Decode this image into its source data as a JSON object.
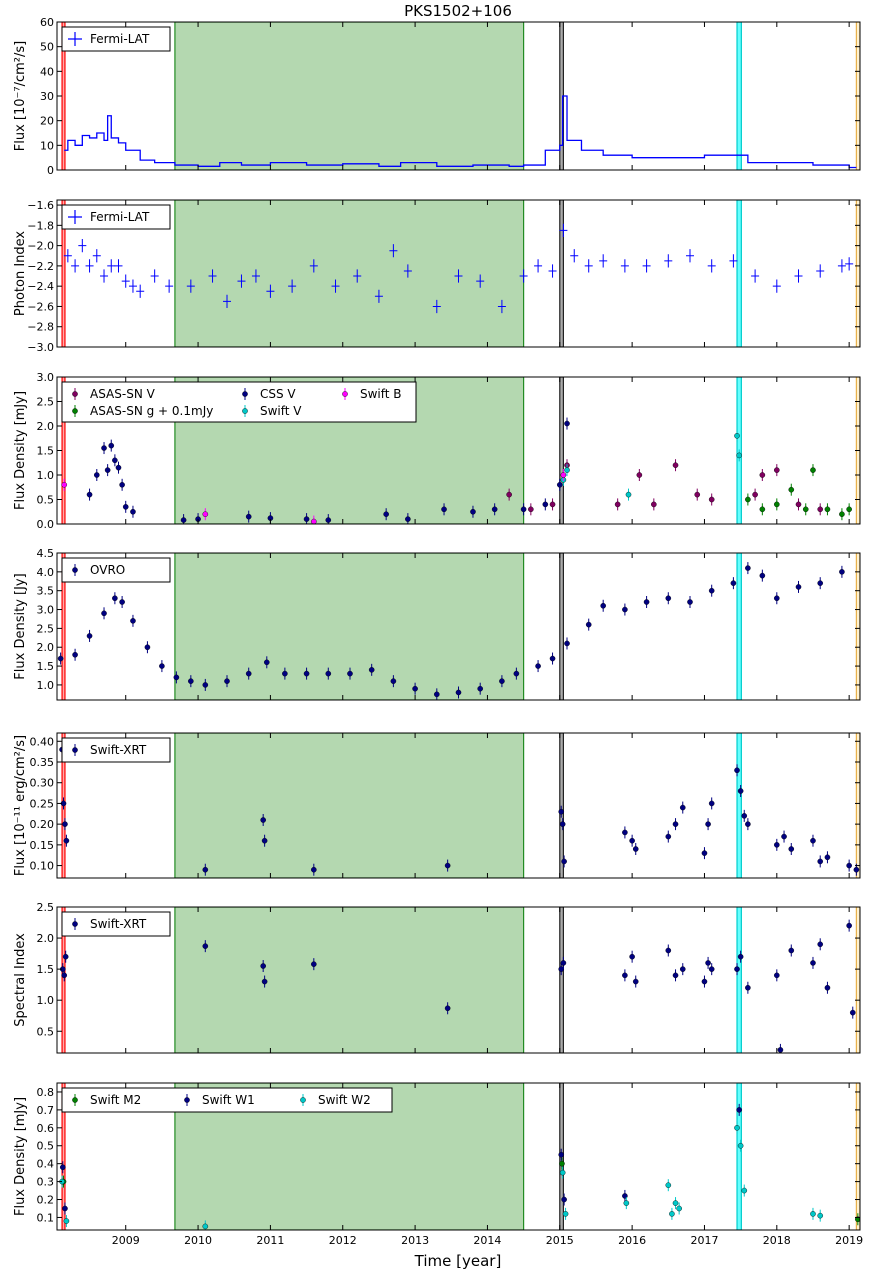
{
  "chart_data": {
    "type": "scatter",
    "title": "PKS1502+106",
    "xlabel": "Time [year]",
    "xlim": [
      2008.05,
      2019.15
    ],
    "xticks": [
      "2009",
      "2010",
      "2011",
      "2012",
      "2013",
      "2014",
      "2015",
      "2016",
      "2017",
      "2018",
      "2019"
    ],
    "shaded_regions": [
      {
        "from": 2008.12,
        "to": 2008.16,
        "color": "#ff0000",
        "fill": "#ffaaaa"
      },
      {
        "from": 2009.68,
        "to": 2014.5,
        "color": "#228b22",
        "fill": "#b4d8b0"
      },
      {
        "from": 2015.0,
        "to": 2015.05,
        "color": "#222222",
        "fill": "#aaaaaa"
      },
      {
        "from": 2017.45,
        "to": 2017.51,
        "color": "#00cccc",
        "fill": "#66ffff"
      },
      {
        "from": 2019.1,
        "to": 2019.15,
        "color": "#e8b04a",
        "fill": "#fff2d0"
      }
    ],
    "panels": [
      {
        "id": "fermi-flux",
        "ylabel": "Flux [10⁻⁷/cm²/s]",
        "ylim": [
          0,
          60
        ],
        "yticks": [
          "0",
          "10",
          "20",
          "30",
          "40",
          "50",
          "60"
        ],
        "legend": {
          "position": "top-left",
          "entries": [
            {
              "name": "Fermi-LAT",
              "color": "#0000ff",
              "marker": "cross"
            }
          ]
        },
        "series": [
          {
            "name": "Fermi-LAT",
            "color": "#0000ff",
            "style": "step",
            "x": [
              2008.15,
              2008.2,
              2008.3,
              2008.4,
              2008.5,
              2008.6,
              2008.7,
              2008.75,
              2008.8,
              2008.9,
              2009.0,
              2009.2,
              2009.4,
              2009.68,
              2010.0,
              2010.3,
              2010.6,
              2011.0,
              2011.5,
              2012.0,
              2012.5,
              2012.8,
              2013.3,
              2013.8,
              2014.3,
              2014.5,
              2014.8,
              2015.0,
              2015.04,
              2015.1,
              2015.3,
              2015.6,
              2016.0,
              2016.5,
              2017.0,
              2017.4,
              2017.6,
              2018.0,
              2018.5,
              2019.0
            ],
            "y": [
              8,
              12,
              10,
              14,
              13,
              15,
              12,
              22,
              13,
              11,
              8,
              4,
              3,
              2,
              1.5,
              3,
              2,
              3,
              2,
              2.5,
              1.5,
              3,
              1.5,
              2,
              1.5,
              2,
              8,
              10,
              30,
              12,
              8,
              6,
              5,
              5,
              6,
              6,
              3,
              3,
              2,
              1
            ]
          }
        ]
      },
      {
        "id": "photon-index",
        "ylabel": "Photon Index",
        "ylim": [
          -3.0,
          -1.55
        ],
        "yticks": [
          "−1.6",
          "−1.8",
          "−2.0",
          "−2.2",
          "−2.4",
          "−2.6",
          "−2.8",
          "−3.0"
        ],
        "legend": {
          "position": "top-left",
          "entries": [
            {
              "name": "Fermi-LAT",
              "color": "#0000ff",
              "marker": "cross"
            }
          ]
        },
        "series": [
          {
            "name": "Fermi-LAT",
            "color": "#0000ff",
            "style": "errorbar",
            "x": [
              2008.2,
              2008.3,
              2008.4,
              2008.5,
              2008.6,
              2008.7,
              2008.8,
              2008.9,
              2009.0,
              2009.1,
              2009.2,
              2009.4,
              2009.6,
              2009.9,
              2010.2,
              2010.4,
              2010.6,
              2010.8,
              2011.0,
              2011.3,
              2011.6,
              2011.9,
              2012.2,
              2012.5,
              2012.7,
              2012.9,
              2013.3,
              2013.6,
              2013.9,
              2014.2,
              2014.5,
              2014.7,
              2014.9,
              2015.05,
              2015.2,
              2015.4,
              2015.6,
              2015.9,
              2016.2,
              2016.5,
              2016.8,
              2017.1,
              2017.4,
              2017.7,
              2018.0,
              2018.3,
              2018.6,
              2018.9,
              2019.0
            ],
            "y": [
              -2.1,
              -2.2,
              -2.0,
              -2.2,
              -2.1,
              -2.3,
              -2.2,
              -2.2,
              -2.35,
              -2.4,
              -2.45,
              -2.3,
              -2.4,
              -2.4,
              -2.3,
              -2.55,
              -2.35,
              -2.3,
              -2.45,
              -2.4,
              -2.2,
              -2.4,
              -2.3,
              -2.5,
              -2.05,
              -2.25,
              -2.6,
              -2.3,
              -2.35,
              -2.6,
              -2.3,
              -2.2,
              -2.25,
              -1.85,
              -2.1,
              -2.2,
              -2.15,
              -2.2,
              -2.2,
              -2.15,
              -2.1,
              -2.2,
              -2.15,
              -2.3,
              -2.4,
              -2.3,
              -2.25,
              -2.2,
              -2.18
            ]
          }
        ]
      },
      {
        "id": "optical-flux",
        "ylabel": "Flux Density [mJy]",
        "ylim": [
          0,
          3.0
        ],
        "yticks": [
          "0.0",
          "0.5",
          "1.0",
          "1.5",
          "2.0",
          "2.5",
          "3.0"
        ],
        "legend": {
          "position": "top-left",
          "entries": [
            {
              "name": "ASAS-SN V",
              "color": "#800060",
              "marker": "dot"
            },
            {
              "name": "CSS V",
              "color": "#000080",
              "marker": "dot"
            },
            {
              "name": "Swift B",
              "color": "#ff00ff",
              "marker": "dot"
            },
            {
              "name": "ASAS-SN g + 0.1mJy",
              "color": "#008000",
              "marker": "dot"
            },
            {
              "name": "Swift V",
              "color": "#00c8c8",
              "marker": "dot"
            }
          ]
        },
        "series": [
          {
            "name": "CSS V",
            "color": "#000080",
            "x": [
              2008.5,
              2008.6,
              2008.7,
              2008.75,
              2008.8,
              2008.85,
              2008.9,
              2008.95,
              2009.0,
              2009.1,
              2009.8,
              2010.0,
              2010.7,
              2011.0,
              2011.5,
              2011.8,
              2012.6,
              2012.9,
              2013.4,
              2013.8,
              2014.1,
              2014.5,
              2014.8,
              2015.0,
              2015.1
            ],
            "y": [
              0.6,
              1.0,
              1.55,
              1.1,
              1.6,
              1.3,
              1.15,
              0.8,
              0.35,
              0.25,
              0.08,
              0.1,
              0.15,
              0.12,
              0.1,
              0.08,
              0.2,
              0.1,
              0.3,
              0.25,
              0.3,
              0.3,
              0.4,
              0.8,
              2.05
            ]
          },
          {
            "name": "ASAS-SN V",
            "color": "#800060",
            "x": [
              2014.3,
              2014.6,
              2014.9,
              2015.1,
              2015.8,
              2016.1,
              2016.3,
              2016.6,
              2016.9,
              2017.1,
              2017.7,
              2017.8,
              2018.0,
              2018.3,
              2018.6
            ],
            "y": [
              0.6,
              0.3,
              0.4,
              1.2,
              0.4,
              1.0,
              0.4,
              1.2,
              0.6,
              0.5,
              0.6,
              1.0,
              1.1,
              0.4,
              0.3
            ]
          },
          {
            "name": "ASAS-SN g + 0.1mJy",
            "color": "#008000",
            "x": [
              2017.6,
              2017.8,
              2018.0,
              2018.2,
              2018.4,
              2018.5,
              2018.7,
              2018.9,
              2019.0
            ],
            "y": [
              0.5,
              0.3,
              0.4,
              0.7,
              0.3,
              1.1,
              0.3,
              0.2,
              0.3
            ]
          },
          {
            "name": "Swift V",
            "color": "#00c8c8",
            "x": [
              2015.05,
              2015.1,
              2015.95,
              2017.45,
              2017.48
            ],
            "y": [
              0.9,
              1.1,
              0.6,
              1.8,
              1.4
            ]
          },
          {
            "name": "Swift B",
            "color": "#ff00ff",
            "x": [
              2008.15,
              2010.1,
              2011.6,
              2015.05
            ],
            "y": [
              0.8,
              0.2,
              0.05,
              1.0
            ]
          }
        ]
      },
      {
        "id": "radio-flux",
        "ylabel": "Flux Density [Jy]",
        "ylim": [
          0.6,
          4.5
        ],
        "yticks": [
          "1.0",
          "1.5",
          "2.0",
          "2.5",
          "3.0",
          "3.5",
          "4.0",
          "4.5"
        ],
        "legend": {
          "position": "top-left",
          "entries": [
            {
              "name": "OVRO",
              "color": "#000080",
              "marker": "dot"
            }
          ]
        },
        "series": [
          {
            "name": "OVRO",
            "color": "#000080",
            "x": [
              2008.1,
              2008.3,
              2008.5,
              2008.7,
              2008.85,
              2008.95,
              2009.1,
              2009.3,
              2009.5,
              2009.7,
              2009.9,
              2010.1,
              2010.4,
              2010.7,
              2010.95,
              2011.2,
              2011.5,
              2011.8,
              2012.1,
              2012.4,
              2012.7,
              2013.0,
              2013.3,
              2013.6,
              2013.9,
              2014.2,
              2014.4,
              2014.7,
              2014.9,
              2015.1,
              2015.4,
              2015.6,
              2015.9,
              2016.2,
              2016.5,
              2016.8,
              2017.1,
              2017.4,
              2017.6,
              2017.8,
              2018.0,
              2018.3,
              2018.6,
              2018.9
            ],
            "y": [
              1.7,
              1.8,
              2.3,
              2.9,
              3.3,
              3.2,
              2.7,
              2.0,
              1.5,
              1.2,
              1.1,
              1.0,
              1.1,
              1.3,
              1.6,
              1.3,
              1.3,
              1.3,
              1.3,
              1.4,
              1.1,
              0.9,
              0.75,
              0.8,
              0.9,
              1.1,
              1.3,
              1.5,
              1.7,
              2.1,
              2.6,
              3.1,
              3.0,
              3.2,
              3.3,
              3.2,
              3.5,
              3.7,
              4.1,
              3.9,
              3.3,
              3.6,
              3.7,
              4.0
            ]
          }
        ]
      },
      {
        "id": "xray-flux",
        "ylabel": "Flux [10⁻¹¹ erg/cm²/s]",
        "ylim": [
          0.07,
          0.42
        ],
        "yticks": [
          "0.10",
          "0.15",
          "0.20",
          "0.25",
          "0.30",
          "0.35",
          "0.40"
        ],
        "legend": {
          "position": "top-left",
          "entries": [
            {
              "name": "Swift-XRT",
              "color": "#000080",
              "marker": "dot"
            }
          ]
        },
        "series": [
          {
            "name": "Swift-XRT",
            "color": "#000080",
            "x": [
              2008.12,
              2008.14,
              2008.16,
              2008.18,
              2010.1,
              2010.9,
              2010.92,
              2011.6,
              2013.45,
              2015.02,
              2015.04,
              2015.06,
              2015.9,
              2016.0,
              2016.05,
              2016.5,
              2016.6,
              2016.7,
              2017.0,
              2017.05,
              2017.1,
              2017.45,
              2017.5,
              2017.55,
              2017.6,
              2018.0,
              2018.1,
              2018.2,
              2018.5,
              2018.6,
              2018.7,
              2019.0,
              2019.1
            ],
            "y": [
              0.38,
              0.25,
              0.2,
              0.16,
              0.09,
              0.21,
              0.16,
              0.09,
              0.1,
              0.23,
              0.2,
              0.11,
              0.18,
              0.16,
              0.14,
              0.17,
              0.2,
              0.24,
              0.13,
              0.2,
              0.25,
              0.33,
              0.28,
              0.22,
              0.2,
              0.15,
              0.17,
              0.14,
              0.16,
              0.11,
              0.12,
              0.1,
              0.09
            ]
          }
        ]
      },
      {
        "id": "spectral-index",
        "ylabel": "Spectral Index",
        "ylim": [
          0.15,
          2.5
        ],
        "yticks": [
          "0.5",
          "1.0",
          "1.5",
          "2.0",
          "2.5"
        ],
        "legend": {
          "position": "top-left",
          "entries": [
            {
              "name": "Swift-XRT",
              "color": "#000080",
              "marker": "dot"
            }
          ]
        },
        "series": [
          {
            "name": "Swift-XRT",
            "color": "#000080",
            "x": [
              2008.13,
              2008.15,
              2008.17,
              2010.1,
              2010.9,
              2010.92,
              2011.6,
              2013.45,
              2015.02,
              2015.05,
              2015.9,
              2016.0,
              2016.05,
              2016.5,
              2016.6,
              2016.7,
              2017.0,
              2017.05,
              2017.1,
              2017.45,
              2017.5,
              2017.6,
              2018.0,
              2018.05,
              2018.2,
              2018.5,
              2018.6,
              2018.7,
              2019.0,
              2019.05
            ],
            "y": [
              1.5,
              1.4,
              1.7,
              1.87,
              1.55,
              1.3,
              1.58,
              0.87,
              1.5,
              1.6,
              1.4,
              1.7,
              1.3,
              1.8,
              1.4,
              1.5,
              1.3,
              1.6,
              1.5,
              1.5,
              1.7,
              1.2,
              1.4,
              0.2,
              1.8,
              1.6,
              1.9,
              1.2,
              2.2,
              0.8
            ]
          }
        ]
      },
      {
        "id": "uv-flux",
        "ylabel": "Flux Density [mJy]",
        "ylim": [
          0.03,
          0.85
        ],
        "yticks": [
          "0.1",
          "0.2",
          "0.3",
          "0.4",
          "0.5",
          "0.6",
          "0.7",
          "0.8"
        ],
        "legend": {
          "position": "top-left",
          "entries": [
            {
              "name": "Swift M2",
              "color": "#008000",
              "marker": "dot"
            },
            {
              "name": "Swift W1",
              "color": "#000080",
              "marker": "dot"
            },
            {
              "name": "Swift W2",
              "color": "#00c8c8",
              "marker": "dot"
            }
          ]
        },
        "series": [
          {
            "name": "Swift M2",
            "color": "#008000",
            "x": [
              2008.14,
              2015.03,
              2019.12
            ],
            "y": [
              0.3,
              0.4,
              0.09
            ]
          },
          {
            "name": "Swift W1",
            "color": "#000080",
            "x": [
              2008.13,
              2008.16,
              2015.02,
              2015.06,
              2015.9,
              2017.48
            ],
            "y": [
              0.38,
              0.15,
              0.45,
              0.2,
              0.22,
              0.7
            ]
          },
          {
            "name": "Swift W2",
            "color": "#00c8c8",
            "x": [
              2008.12,
              2008.18,
              2010.1,
              2015.04,
              2015.08,
              2015.92,
              2016.5,
              2016.55,
              2016.6,
              2016.65,
              2017.45,
              2017.5,
              2017.55,
              2018.5,
              2018.6
            ],
            "y": [
              0.3,
              0.08,
              0.05,
              0.35,
              0.12,
              0.18,
              0.28,
              0.12,
              0.18,
              0.15,
              0.6,
              0.5,
              0.25,
              0.12,
              0.11
            ]
          }
        ]
      }
    ]
  }
}
